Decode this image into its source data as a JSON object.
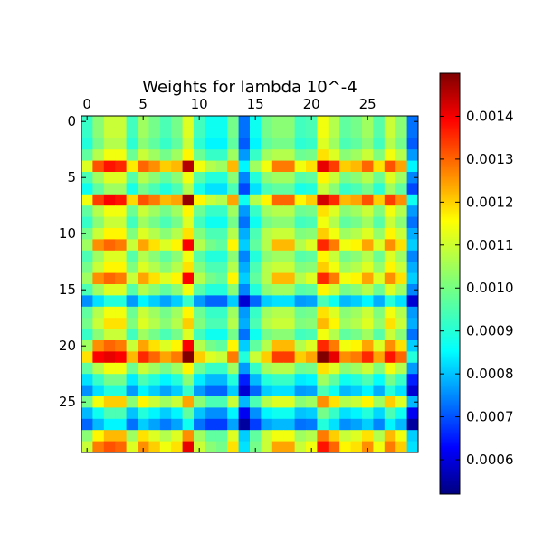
{
  "chart_data": {
    "type": "heatmap",
    "title": "Weights for lambda 10^-4",
    "xlabel": "",
    "ylabel": "",
    "x_ticks": [
      "0",
      "5",
      "10",
      "15",
      "20",
      "25"
    ],
    "y_ticks": [
      "0",
      "5",
      "10",
      "15",
      "20",
      "25"
    ],
    "x_tick_positions": [
      0,
      5,
      10,
      15,
      20,
      25
    ],
    "y_tick_positions": [
      0,
      5,
      10,
      15,
      20,
      25
    ],
    "rows": 30,
    "cols": 30,
    "x_range": [
      -0.5,
      29.5
    ],
    "y_range": [
      -0.5,
      29.5
    ],
    "colormap": "jet",
    "value_range": [
      0.00052,
      0.0015
    ],
    "colorbar": {
      "ticks": [
        "0.0014",
        "0.0013",
        "0.0012",
        "0.0011",
        "0.0010",
        "0.0009",
        "0.0008",
        "0.0007",
        "0.0006"
      ],
      "tick_values": [
        0.0014,
        0.0013,
        0.0012,
        0.0011,
        0.001,
        0.0009,
        0.0008,
        0.0007,
        0.0006
      ]
    },
    "values": [
      [
        0.00094,
        0.00102,
        0.00108,
        0.00108,
        0.00095,
        0.00104,
        0.001,
        0.00096,
        0.001,
        0.0011,
        0.00095,
        0.0009,
        0.0009,
        0.001,
        0.00075,
        0.0009,
        0.001,
        0.00102,
        0.00102,
        0.00095,
        0.00096,
        0.00112,
        0.00106,
        0.00098,
        0.001,
        0.00104,
        0.00097,
        0.00108,
        0.00102,
        0.00075
      ],
      [
        0.00094,
        0.00102,
        0.00108,
        0.00108,
        0.00095,
        0.00104,
        0.001,
        0.00096,
        0.001,
        0.0011,
        0.00095,
        0.0009,
        0.0009,
        0.001,
        0.00075,
        0.0009,
        0.001,
        0.00102,
        0.00102,
        0.00095,
        0.00096,
        0.00112,
        0.00106,
        0.00098,
        0.001,
        0.00104,
        0.00097,
        0.00108,
        0.00102,
        0.00075
      ],
      [
        0.00092,
        0.001,
        0.00106,
        0.00106,
        0.00093,
        0.00102,
        0.00098,
        0.00094,
        0.00098,
        0.00108,
        0.00093,
        0.00088,
        0.00088,
        0.00098,
        0.00073,
        0.00088,
        0.00098,
        0.001,
        0.001,
        0.00093,
        0.00094,
        0.0011,
        0.00104,
        0.00096,
        0.00098,
        0.00102,
        0.00095,
        0.00106,
        0.001,
        0.00073
      ],
      [
        0.00098,
        0.00106,
        0.00112,
        0.00112,
        0.00099,
        0.00108,
        0.00104,
        0.001,
        0.00104,
        0.00114,
        0.00099,
        0.00094,
        0.00094,
        0.00104,
        0.00079,
        0.00094,
        0.00104,
        0.00106,
        0.00106,
        0.00099,
        0.001,
        0.00116,
        0.0011,
        0.00102,
        0.00104,
        0.00108,
        0.00101,
        0.00112,
        0.00106,
        0.00079
      ],
      [
        0.0011,
        0.0013,
        0.00136,
        0.00134,
        0.00115,
        0.00128,
        0.00124,
        0.00118,
        0.0012,
        0.00145,
        0.00112,
        0.00106,
        0.00104,
        0.0012,
        0.00088,
        0.00104,
        0.00112,
        0.00126,
        0.00126,
        0.00112,
        0.00116,
        0.0014,
        0.00132,
        0.00118,
        0.0012,
        0.00128,
        0.00116,
        0.0013,
        0.00122,
        0.00088
      ],
      [
        0.00096,
        0.00104,
        0.0011,
        0.0011,
        0.00097,
        0.00106,
        0.00102,
        0.00098,
        0.00102,
        0.00112,
        0.00097,
        0.00092,
        0.00092,
        0.00102,
        0.00077,
        0.00092,
        0.00102,
        0.00104,
        0.00104,
        0.00097,
        0.00098,
        0.00114,
        0.00108,
        0.001,
        0.00102,
        0.00106,
        0.00099,
        0.0011,
        0.00104,
        0.00077
      ],
      [
        0.0009,
        0.00098,
        0.00104,
        0.00104,
        0.00091,
        0.001,
        0.00096,
        0.00092,
        0.00096,
        0.00106,
        0.00091,
        0.00086,
        0.00086,
        0.00096,
        0.00071,
        0.00086,
        0.00096,
        0.00098,
        0.00098,
        0.00091,
        0.00092,
        0.00108,
        0.00102,
        0.00094,
        0.00096,
        0.001,
        0.00093,
        0.00104,
        0.00098,
        0.00071
      ],
      [
        0.00112,
        0.00132,
        0.00138,
        0.00136,
        0.00117,
        0.0013,
        0.00126,
        0.0012,
        0.00122,
        0.00148,
        0.00114,
        0.00108,
        0.00106,
        0.00122,
        0.0009,
        0.00106,
        0.00114,
        0.00128,
        0.00128,
        0.00114,
        0.00118,
        0.00142,
        0.00134,
        0.0012,
        0.00122,
        0.0013,
        0.00118,
        0.00132,
        0.00124,
        0.0009
      ],
      [
        0.00098,
        0.00106,
        0.00112,
        0.00112,
        0.00099,
        0.00108,
        0.00104,
        0.001,
        0.00104,
        0.00114,
        0.00099,
        0.00094,
        0.00094,
        0.00104,
        0.00079,
        0.00094,
        0.00104,
        0.00106,
        0.00106,
        0.00099,
        0.001,
        0.00116,
        0.0011,
        0.00102,
        0.00104,
        0.00108,
        0.00101,
        0.00112,
        0.00106,
        0.00079
      ],
      [
        0.00094,
        0.00102,
        0.00108,
        0.00108,
        0.00095,
        0.00104,
        0.001,
        0.00096,
        0.001,
        0.0011,
        0.00095,
        0.0009,
        0.0009,
        0.001,
        0.00075,
        0.0009,
        0.001,
        0.00102,
        0.00102,
        0.00095,
        0.00096,
        0.00112,
        0.00106,
        0.00098,
        0.001,
        0.00104,
        0.00097,
        0.00108,
        0.00102,
        0.00075
      ],
      [
        0.001,
        0.00108,
        0.00114,
        0.00114,
        0.00101,
        0.0011,
        0.00106,
        0.00102,
        0.00106,
        0.00116,
        0.00101,
        0.00096,
        0.00096,
        0.00106,
        0.00081,
        0.00096,
        0.00106,
        0.00108,
        0.00108,
        0.00101,
        0.00102,
        0.00118,
        0.00112,
        0.00104,
        0.00106,
        0.0011,
        0.00103,
        0.00114,
        0.00108,
        0.00081
      ],
      [
        0.00104,
        0.00124,
        0.00128,
        0.00126,
        0.00108,
        0.00122,
        0.00116,
        0.0011,
        0.00114,
        0.00138,
        0.00106,
        0.001,
        0.00098,
        0.00114,
        0.00084,
        0.00098,
        0.00106,
        0.0012,
        0.0012,
        0.00106,
        0.0011,
        0.00134,
        0.00126,
        0.00112,
        0.00114,
        0.00122,
        0.0011,
        0.00124,
        0.00116,
        0.00084
      ],
      [
        0.00096,
        0.00104,
        0.0011,
        0.0011,
        0.00097,
        0.00106,
        0.00102,
        0.00098,
        0.00102,
        0.00112,
        0.00097,
        0.00092,
        0.00092,
        0.00102,
        0.00077,
        0.00092,
        0.00102,
        0.00104,
        0.00104,
        0.00097,
        0.00098,
        0.00114,
        0.00108,
        0.001,
        0.00102,
        0.00106,
        0.00099,
        0.0011,
        0.00104,
        0.00077
      ],
      [
        0.001,
        0.00108,
        0.00114,
        0.00114,
        0.00101,
        0.0011,
        0.00106,
        0.00102,
        0.00106,
        0.00116,
        0.00101,
        0.00096,
        0.00096,
        0.00106,
        0.00081,
        0.00096,
        0.00106,
        0.00108,
        0.00108,
        0.00101,
        0.00102,
        0.00118,
        0.00112,
        0.00104,
        0.00106,
        0.0011,
        0.00103,
        0.00114,
        0.00108,
        0.00081
      ],
      [
        0.00104,
        0.00124,
        0.00128,
        0.00126,
        0.00108,
        0.00122,
        0.00116,
        0.0011,
        0.00114,
        0.00138,
        0.00106,
        0.001,
        0.00098,
        0.00114,
        0.00084,
        0.00098,
        0.00106,
        0.0012,
        0.0012,
        0.00106,
        0.0011,
        0.00134,
        0.00126,
        0.00112,
        0.00114,
        0.00122,
        0.0011,
        0.00124,
        0.00116,
        0.00084
      ],
      [
        0.00096,
        0.00104,
        0.0011,
        0.0011,
        0.00097,
        0.00106,
        0.00102,
        0.00098,
        0.00102,
        0.00112,
        0.00097,
        0.00092,
        0.00092,
        0.00102,
        0.00077,
        0.00092,
        0.00102,
        0.00104,
        0.00104,
        0.00097,
        0.00098,
        0.00114,
        0.00108,
        0.001,
        0.00102,
        0.00106,
        0.00099,
        0.0011,
        0.00104,
        0.00077
      ],
      [
        0.00078,
        0.00086,
        0.00092,
        0.00092,
        0.00079,
        0.00088,
        0.00084,
        0.0008,
        0.00084,
        0.00094,
        0.00079,
        0.00074,
        0.00074,
        0.00084,
        0.0006,
        0.00074,
        0.00084,
        0.00086,
        0.00086,
        0.00079,
        0.0008,
        0.00096,
        0.0009,
        0.00082,
        0.00084,
        0.00088,
        0.00081,
        0.00092,
        0.00086,
        0.0006
      ],
      [
        0.00098,
        0.00106,
        0.00112,
        0.00112,
        0.00099,
        0.00108,
        0.00104,
        0.001,
        0.00104,
        0.00114,
        0.00099,
        0.00094,
        0.00094,
        0.00104,
        0.00079,
        0.00094,
        0.00104,
        0.00106,
        0.00106,
        0.00099,
        0.001,
        0.00116,
        0.0011,
        0.00102,
        0.00104,
        0.00108,
        0.00101,
        0.00112,
        0.00106,
        0.00079
      ],
      [
        0.001,
        0.00108,
        0.00116,
        0.00116,
        0.00101,
        0.0011,
        0.00106,
        0.00102,
        0.00106,
        0.00118,
        0.00101,
        0.00096,
        0.00096,
        0.00106,
        0.00081,
        0.00096,
        0.00106,
        0.00108,
        0.00108,
        0.00101,
        0.00102,
        0.0012,
        0.00114,
        0.00104,
        0.00106,
        0.0011,
        0.00103,
        0.00116,
        0.00108,
        0.00081
      ],
      [
        0.00094,
        0.00102,
        0.00108,
        0.00108,
        0.00095,
        0.00104,
        0.001,
        0.00096,
        0.001,
        0.0011,
        0.00095,
        0.0009,
        0.0009,
        0.001,
        0.00075,
        0.0009,
        0.001,
        0.00102,
        0.00102,
        0.00095,
        0.00096,
        0.00112,
        0.00106,
        0.00098,
        0.001,
        0.00104,
        0.00097,
        0.00108,
        0.00102,
        0.00075
      ],
      [
        0.00104,
        0.00124,
        0.00128,
        0.00126,
        0.00108,
        0.00122,
        0.00116,
        0.0011,
        0.00114,
        0.00138,
        0.00106,
        0.001,
        0.00098,
        0.00114,
        0.00084,
        0.00098,
        0.00106,
        0.0012,
        0.0012,
        0.00106,
        0.0011,
        0.00134,
        0.00126,
        0.00112,
        0.00114,
        0.00122,
        0.0011,
        0.00124,
        0.00116,
        0.00084
      ],
      [
        0.00116,
        0.00138,
        0.0014,
        0.00138,
        0.0012,
        0.00134,
        0.00128,
        0.00122,
        0.00126,
        0.00152,
        0.00118,
        0.0011,
        0.00108,
        0.00126,
        0.00092,
        0.00108,
        0.00118,
        0.00132,
        0.00132,
        0.00118,
        0.00122,
        0.0015,
        0.0014,
        0.00124,
        0.00126,
        0.00134,
        0.00122,
        0.00136,
        0.00128,
        0.00092
      ],
      [
        0.00098,
        0.00106,
        0.00112,
        0.00112,
        0.00099,
        0.00108,
        0.00104,
        0.001,
        0.00104,
        0.00114,
        0.00099,
        0.00094,
        0.00094,
        0.00104,
        0.00079,
        0.00094,
        0.00104,
        0.00106,
        0.00106,
        0.00099,
        0.001,
        0.00116,
        0.0011,
        0.00102,
        0.00104,
        0.00108,
        0.00101,
        0.00112,
        0.00106,
        0.00079
      ],
      [
        0.00086,
        0.00094,
        0.001,
        0.001,
        0.00087,
        0.00096,
        0.00092,
        0.00088,
        0.00092,
        0.00102,
        0.00087,
        0.00082,
        0.00082,
        0.00092,
        0.00067,
        0.00082,
        0.00092,
        0.00094,
        0.00094,
        0.00087,
        0.00088,
        0.00104,
        0.00098,
        0.0009,
        0.00092,
        0.00096,
        0.00089,
        0.001,
        0.00094,
        0.00067
      ],
      [
        0.00078,
        0.00086,
        0.00092,
        0.00092,
        0.00079,
        0.00088,
        0.00084,
        0.0008,
        0.00084,
        0.00094,
        0.00079,
        0.00074,
        0.00074,
        0.00084,
        0.0006,
        0.00074,
        0.00084,
        0.00086,
        0.00086,
        0.00079,
        0.0008,
        0.00096,
        0.0009,
        0.00082,
        0.00084,
        0.00088,
        0.00081,
        0.00092,
        0.00086,
        0.0006
      ],
      [
        0.001,
        0.00112,
        0.00118,
        0.00118,
        0.00102,
        0.00114,
        0.00108,
        0.00104,
        0.00108,
        0.00122,
        0.00102,
        0.00096,
        0.00096,
        0.00108,
        0.00082,
        0.00096,
        0.00106,
        0.0011,
        0.0011,
        0.00102,
        0.00104,
        0.00124,
        0.00116,
        0.00106,
        0.00108,
        0.00114,
        0.00104,
        0.00118,
        0.0011,
        0.00082
      ],
      [
        0.00082,
        0.0009,
        0.00096,
        0.00096,
        0.00083,
        0.00092,
        0.00088,
        0.00084,
        0.00088,
        0.00098,
        0.00083,
        0.00078,
        0.00078,
        0.00088,
        0.00063,
        0.00078,
        0.00088,
        0.0009,
        0.0009,
        0.00083,
        0.00084,
        0.001,
        0.00094,
        0.00086,
        0.00088,
        0.00092,
        0.00085,
        0.00096,
        0.0009,
        0.00063
      ],
      [
        0.00074,
        0.00082,
        0.00088,
        0.00088,
        0.00075,
        0.00084,
        0.0008,
        0.00076,
        0.0008,
        0.0009,
        0.00075,
        0.0007,
        0.0007,
        0.0008,
        0.00055,
        0.0007,
        0.0008,
        0.00082,
        0.00082,
        0.00075,
        0.00076,
        0.00092,
        0.00086,
        0.00078,
        0.0008,
        0.00084,
        0.00077,
        0.00088,
        0.00082,
        0.00055
      ],
      [
        0.00102,
        0.00114,
        0.0012,
        0.0012,
        0.00104,
        0.00116,
        0.0011,
        0.00106,
        0.0011,
        0.00124,
        0.00104,
        0.00098,
        0.00098,
        0.0011,
        0.00084,
        0.00098,
        0.00108,
        0.00112,
        0.00112,
        0.00104,
        0.00106,
        0.00126,
        0.00118,
        0.00108,
        0.0011,
        0.00116,
        0.00106,
        0.0012,
        0.00112,
        0.00084
      ],
      [
        0.00108,
        0.00126,
        0.0013,
        0.00128,
        0.0011,
        0.00124,
        0.00118,
        0.00112,
        0.00116,
        0.0014,
        0.00108,
        0.00102,
        0.001,
        0.00116,
        0.00086,
        0.001,
        0.00108,
        0.00122,
        0.00122,
        0.00108,
        0.00112,
        0.00136,
        0.00128,
        0.00114,
        0.00116,
        0.00124,
        0.00112,
        0.00126,
        0.00118,
        0.00086
      ]
    ]
  }
}
